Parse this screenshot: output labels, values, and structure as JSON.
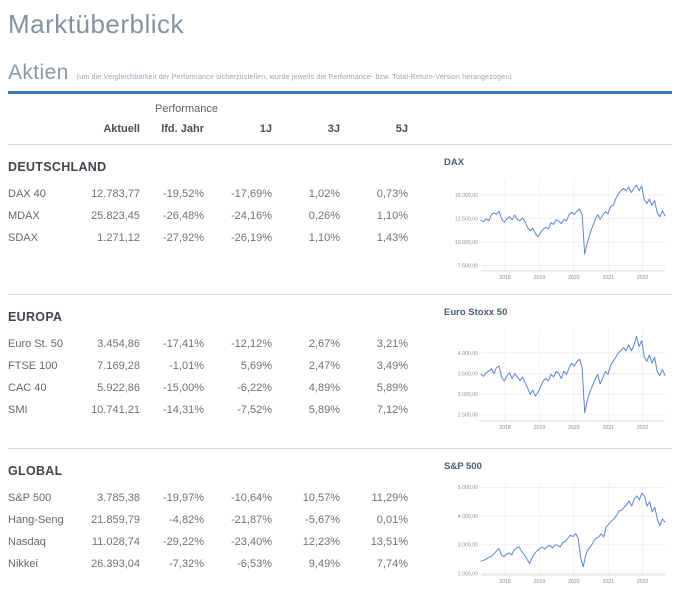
{
  "page": {
    "title": "Marktüberblick"
  },
  "section": {
    "title": "Aktien",
    "subtitle": "(um die Vergleichbarkeit der Performance sicherzustellen, wurde jeweils die Performance- bzw. Total-Return-Version herangezogen)"
  },
  "table": {
    "group_header": "Performance",
    "columns": [
      "Aktuell",
      "lfd. Jahr",
      "1J",
      "3J",
      "5J"
    ],
    "groups": [
      {
        "name": "DEUTSCHLAND",
        "rows": [
          {
            "label": "DAX 40",
            "values": [
              "12.783,77",
              "-19,52%",
              "-17,69%",
              "1,02%",
              "0,73%"
            ]
          },
          {
            "label": "MDAX",
            "values": [
              "25.823,45",
              "-26,48%",
              "-24,16%",
              "0,26%",
              "1,10%"
            ]
          },
          {
            "label": "SDAX",
            "values": [
              "1.271,12",
              "-27,92%",
              "-26,19%",
              "1,10%",
              "1,43%"
            ]
          }
        ]
      },
      {
        "name": "EUROPA",
        "rows": [
          {
            "label": "Euro St. 50",
            "values": [
              "3.454,86",
              "-17,41%",
              "-12,12%",
              "2,67%",
              "3,21%"
            ]
          },
          {
            "label": "FTSE 100",
            "values": [
              "7.169,28",
              "-1,01%",
              "5,69%",
              "2,47%",
              "3,49%"
            ]
          },
          {
            "label": "CAC 40",
            "values": [
              "5.922,86",
              "-15,00%",
              "-6,22%",
              "4,89%",
              "5,89%"
            ]
          },
          {
            "label": "SMI",
            "values": [
              "10.741,21",
              "-14,31%",
              "-7,52%",
              "5,89%",
              "7,12%"
            ]
          }
        ]
      },
      {
        "name": "GLOBAL",
        "rows": [
          {
            "label": "S&P 500",
            "values": [
              "3.785,38",
              "-19,97%",
              "-10,64%",
              "10,57%",
              "11,29%"
            ]
          },
          {
            "label": "Hang-Seng",
            "values": [
              "21.859,79",
              "-4,82%",
              "-21,87%",
              "-5,67%",
              "0,01%"
            ]
          },
          {
            "label": "Nasdaq",
            "values": [
              "11.028,74",
              "-29,22%",
              "-23,40%",
              "12,23%",
              "13,51%"
            ]
          },
          {
            "label": "Nikkei",
            "values": [
              "26.393,04",
              "-7,32%",
              "-6,53%",
              "9,49%",
              "7,74%"
            ]
          }
        ]
      }
    ]
  },
  "chart_data": [
    {
      "type": "line",
      "title": "DAX",
      "xlabel": "",
      "ylabel": "",
      "legend": false,
      "grid": true,
      "x_range": [
        2017.3,
        2022.65
      ],
      "xticks": [
        2018,
        2019,
        2020,
        2021,
        2022
      ],
      "ylim": [
        6900,
        16700
      ],
      "yticks": [
        7500,
        10000,
        12500,
        15000
      ],
      "ytick_labels": [
        "7.500,00",
        "10.000,00",
        "12.500,00",
        "15.000,00"
      ],
      "values": [
        12300,
        12150,
        12450,
        12250,
        12900,
        13100,
        12950,
        13250,
        12400,
        12100,
        12450,
        12700,
        12350,
        12850,
        12400,
        12250,
        12550,
        12150,
        11500,
        11200,
        11450,
        10900,
        10550,
        11000,
        11350,
        11550,
        11400,
        12050,
        11850,
        12350,
        12250,
        11950,
        12400,
        12250,
        12900,
        13150,
        12950,
        13250,
        13500,
        12900,
        8700,
        9900,
        10800,
        11600,
        12300,
        12900,
        12400,
        12850,
        13250,
        13000,
        13750,
        13900,
        14600,
        15150,
        15450,
        15700,
        15450,
        15850,
        15250,
        15700,
        16050,
        15450,
        15950,
        14450,
        14100,
        14550,
        13900,
        14400,
        13150,
        12650,
        13300,
        12784
      ]
    },
    {
      "type": "line",
      "title": "Euro Stoxx 50",
      "xlabel": "",
      "ylabel": "",
      "legend": false,
      "grid": true,
      "x_range": [
        2017.3,
        2022.65
      ],
      "xticks": [
        2018,
        2019,
        2020,
        2021,
        2022
      ],
      "ylim": [
        2350,
        4580
      ],
      "yticks": [
        2500,
        3000,
        3500,
        4000
      ],
      "ytick_labels": [
        "2.500,00",
        "3.000,00",
        "3.500,00",
        "4.000,00"
      ],
      "values": [
        3480,
        3430,
        3520,
        3560,
        3620,
        3500,
        3650,
        3680,
        3400,
        3320,
        3440,
        3520,
        3380,
        3500,
        3420,
        3330,
        3420,
        3280,
        3150,
        3000,
        3100,
        2950,
        3050,
        3180,
        3320,
        3380,
        3320,
        3480,
        3420,
        3550,
        3500,
        3380,
        3560,
        3480,
        3640,
        3750,
        3680,
        3790,
        3850,
        3650,
        2550,
        2850,
        3050,
        3200,
        3350,
        3480,
        3250,
        3400,
        3550,
        3480,
        3700,
        3800,
        3900,
        4000,
        4060,
        4130,
        4050,
        4200,
        4050,
        4180,
        4400,
        4150,
        4300,
        3900,
        3800,
        3950,
        3750,
        3900,
        3550,
        3450,
        3600,
        3455
      ]
    },
    {
      "type": "line",
      "title": "S&P 500",
      "xlabel": "",
      "ylabel": "",
      "legend": false,
      "grid": true,
      "x_range": [
        2017.3,
        2022.65
      ],
      "xticks": [
        2018,
        2019,
        2020,
        2021,
        2022
      ],
      "ylim": [
        1950,
        5150
      ],
      "yticks": [
        2000,
        3000,
        4000,
        5000
      ],
      "ytick_labels": [
        "2.000,00",
        "3.000,00",
        "4.000,00",
        "5.000,00"
      ],
      "values": [
        2430,
        2460,
        2500,
        2560,
        2600,
        2680,
        2780,
        2870,
        2650,
        2590,
        2680,
        2720,
        2650,
        2820,
        2900,
        2920,
        2760,
        2650,
        2500,
        2350,
        2550,
        2700,
        2800,
        2870,
        2920,
        2850,
        2950,
        2980,
        2890,
        3000,
        2980,
        2920,
        3080,
        3120,
        3230,
        3330,
        3290,
        3390,
        3230,
        2540,
        2240,
        2650,
        2850,
        2950,
        3100,
        3230,
        3270,
        3380,
        3270,
        3630,
        3720,
        3820,
        3900,
        4020,
        4180,
        4200,
        4300,
        4400,
        4520,
        4350,
        4600,
        4700,
        4570,
        4800,
        4680,
        4350,
        4500,
        4150,
        4300,
        3900,
        3670,
        3900,
        3785
      ]
    }
  ],
  "colors": {
    "accent_rule": "#3d7ab8",
    "chart_line": "#5c87cf",
    "grid_line": "#e8e8ec",
    "divider": "#d8d8d8",
    "title_text": "#8493a2"
  }
}
